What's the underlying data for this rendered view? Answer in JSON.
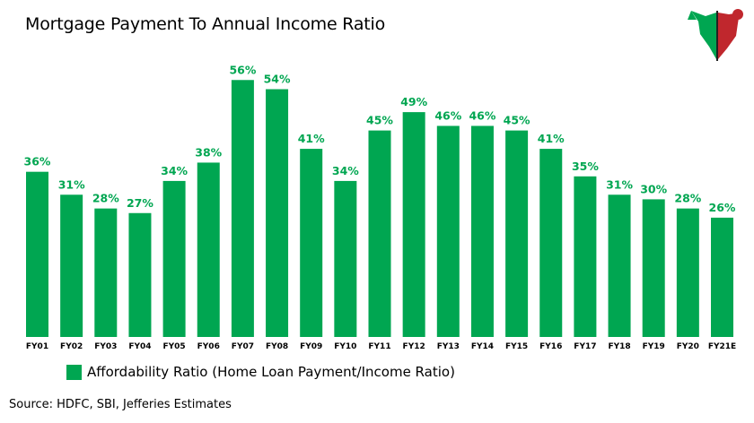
{
  "title": "Mortgage Payment To Annual Income Ratio",
  "source": "Source: HDFC, SBI, Jefferies Estimates",
  "logo": {
    "icon": "bull-bear-logo-icon",
    "colors": [
      "#00a651",
      "#c0272d"
    ]
  },
  "colors": {
    "bar": "#00a651",
    "label": "#00a651"
  },
  "chart_data": {
    "type": "bar",
    "categories": [
      "FY01",
      "FY02",
      "FY03",
      "FY04",
      "FY05",
      "FY06",
      "FY07",
      "FY08",
      "FY09",
      "FY10",
      "FY11",
      "FY12",
      "FY13",
      "FY14",
      "FY15",
      "FY16",
      "FY17",
      "FY18",
      "FY19",
      "FY20",
      "FY21E"
    ],
    "series": [
      {
        "name": "Affordability Ratio (Home Loan Payment/Income Ratio)",
        "values": [
          36,
          31,
          28,
          27,
          34,
          38,
          56,
          54,
          41,
          34,
          45,
          49,
          46,
          46,
          45,
          41,
          35,
          31,
          30,
          28,
          26
        ],
        "labels": [
          "36%",
          "31%",
          "28%",
          "27%",
          "34%",
          "38%",
          "56%",
          "54%",
          "41%",
          "34%",
          "45%",
          "49%",
          "46%",
          "46%",
          "45%",
          "41%",
          "35%",
          "31%",
          "30%",
          "28%",
          "26%"
        ]
      }
    ],
    "ylim": [
      0,
      60
    ],
    "grid": false,
    "legend_position": "bottom-left"
  }
}
